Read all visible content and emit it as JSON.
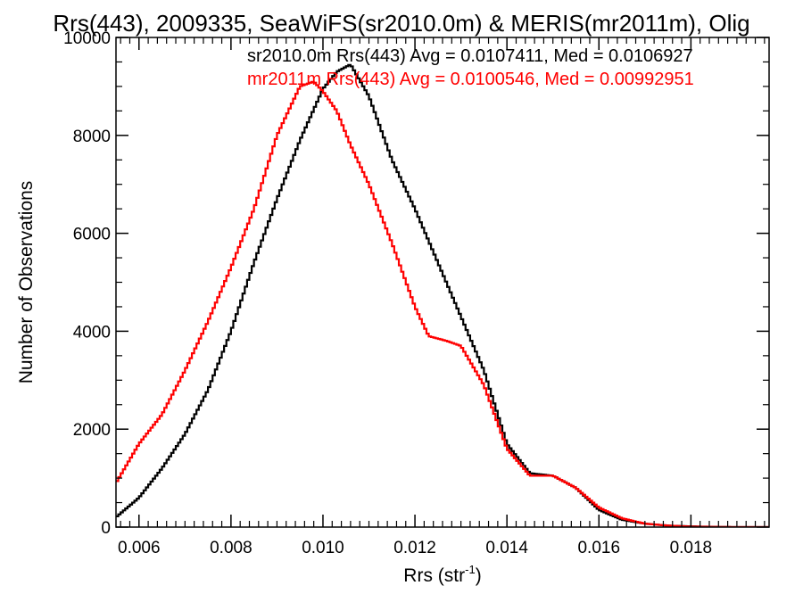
{
  "chart_data": {
    "type": "line",
    "title": "Rrs(443), 2009335, SeaWiFS(sr2010.0m) & MERIS(mr2011m), Olig",
    "xlabel": "Rrs (str",
    "xlabel_sup": "-1",
    "xlabel_close": ")",
    "ylabel": "Number of Observations",
    "xlim": [
      0.0055,
      0.0197
    ],
    "ylim": [
      0,
      10000
    ],
    "grid": false,
    "step": true,
    "x_ticks": [
      {
        "value": 0.006,
        "label": "0.006"
      },
      {
        "value": 0.008,
        "label": "0.008"
      },
      {
        "value": 0.01,
        "label": "0.010"
      },
      {
        "value": 0.012,
        "label": "0.012"
      },
      {
        "value": 0.014,
        "label": "0.014"
      },
      {
        "value": 0.016,
        "label": "0.016"
      },
      {
        "value": 0.018,
        "label": "0.018"
      }
    ],
    "y_ticks": [
      {
        "value": 0,
        "label": "0"
      },
      {
        "value": 2000,
        "label": "2000"
      },
      {
        "value": 4000,
        "label": "4000"
      },
      {
        "value": 6000,
        "label": "6000"
      },
      {
        "value": 8000,
        "label": "8000"
      },
      {
        "value": 10000,
        "label": "10000"
      }
    ],
    "legend": [
      {
        "text": "sr2010.0m Rrs(443) Avg = 0.0107411, Med = 0.0106927",
        "color": "#000000"
      },
      {
        "text": "mr2011m Rrs(443) Avg = 0.0100546, Med = 0.00992951",
        "color": "#ff0000"
      }
    ],
    "series": [
      {
        "color": "#000000",
        "x": [
          0.0055,
          0.006,
          0.0065,
          0.007,
          0.0075,
          0.008,
          0.0085,
          0.009,
          0.0095,
          0.01,
          0.0103,
          0.0106,
          0.011,
          0.0115,
          0.012,
          0.0125,
          0.013,
          0.0135,
          0.014,
          0.0145,
          0.015,
          0.0155,
          0.016,
          0.0165,
          0.017,
          0.0175,
          0.018,
          0.0185,
          0.019,
          0.0197
        ],
        "y": [
          200,
          600,
          1200,
          1900,
          2800,
          4000,
          5400,
          6700,
          7900,
          8950,
          9300,
          9450,
          8800,
          7500,
          6500,
          5400,
          4300,
          3200,
          1700,
          1100,
          1050,
          800,
          350,
          150,
          70,
          30,
          15,
          5,
          0,
          0
        ]
      },
      {
        "color": "#ff0000",
        "x": [
          0.0055,
          0.006,
          0.0065,
          0.007,
          0.0075,
          0.008,
          0.0085,
          0.009,
          0.0095,
          0.0098,
          0.01,
          0.0103,
          0.0106,
          0.011,
          0.0115,
          0.012,
          0.0123,
          0.0127,
          0.013,
          0.0135,
          0.014,
          0.0145,
          0.015,
          0.0155,
          0.016,
          0.0165,
          0.017,
          0.0175,
          0.018,
          0.019,
          0.0197
        ],
        "y": [
          900,
          1700,
          2300,
          3200,
          4200,
          5300,
          6500,
          8000,
          9000,
          9100,
          8900,
          8500,
          7800,
          7000,
          5800,
          4500,
          3900,
          3800,
          3700,
          2900,
          1600,
          1050,
          1050,
          800,
          400,
          180,
          70,
          30,
          10,
          0,
          0
        ]
      }
    ]
  }
}
